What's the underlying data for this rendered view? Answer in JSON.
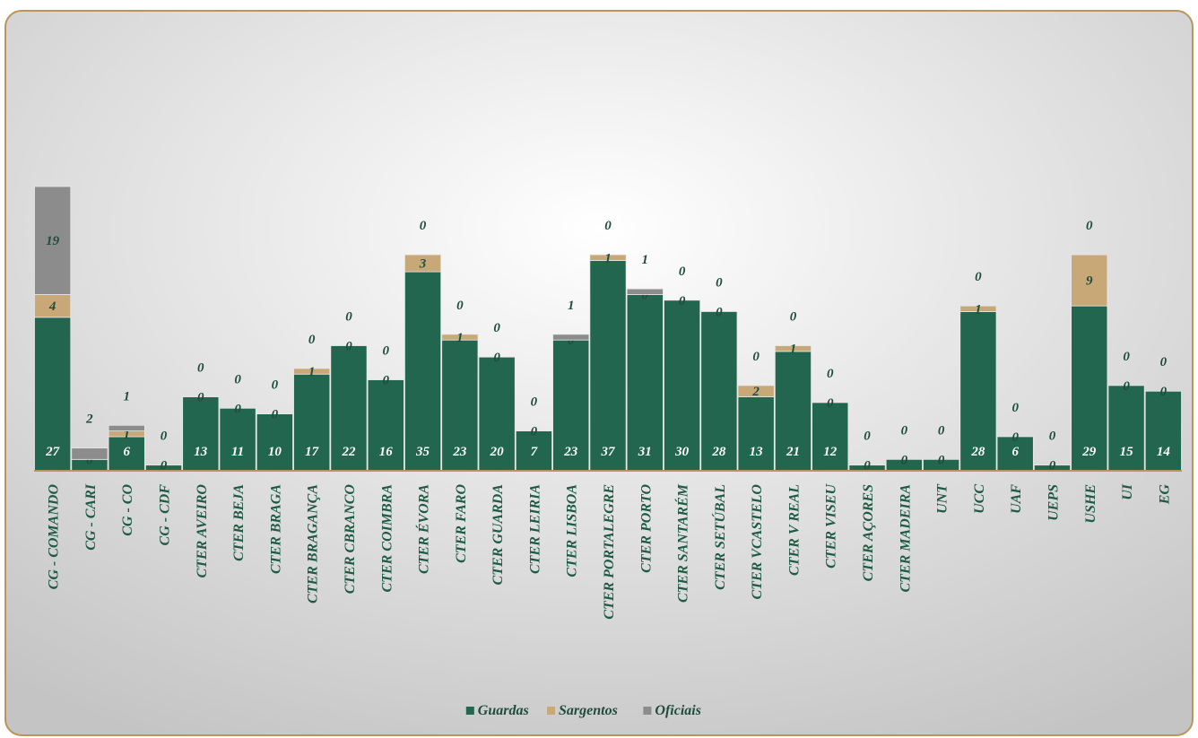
{
  "chart_data": {
    "type": "bar",
    "stacked": true,
    "categories": [
      "CG - COMANDO",
      "CG - CARI",
      "CG - CO",
      "CG - CDF",
      "CTER AVEIRO",
      "CTER BEJA",
      "CTER BRAGA",
      "CTER BRAGANÇA",
      "CTER CBRANCO",
      "CTER COIMBRA",
      "CTER ÉVORA",
      "CTER FARO",
      "CTER GUARDA",
      "CTER LEIRIA",
      "CTER LISBOA",
      "CTER PORTALEGRE",
      "CTER PORTO",
      "CTER SANTARÉM",
      "CTER SETÚBAL",
      "CTER VCASTELO",
      "CTER V REAL",
      "CTER VISEU",
      "CTER AÇORES",
      "CTER MADEIRA",
      "UNT",
      "UCC",
      "UAF",
      "UEPS",
      "USHE",
      "UI",
      "EG"
    ],
    "series": [
      {
        "name": "Guardas",
        "color": "#236650",
        "values": [
          27,
          2,
          6,
          1,
          13,
          11,
          10,
          17,
          22,
          16,
          35,
          23,
          20,
          7,
          23,
          37,
          31,
          30,
          28,
          13,
          21,
          12,
          1,
          2,
          2,
          28,
          6,
          1,
          29,
          15,
          14
        ]
      },
      {
        "name": "Sargentos",
        "color": "#c9a878",
        "values": [
          4,
          0,
          1,
          0,
          0,
          0,
          0,
          1,
          0,
          0,
          3,
          1,
          0,
          0,
          0,
          1,
          0,
          0,
          0,
          2,
          1,
          0,
          0,
          0,
          0,
          1,
          0,
          0,
          9,
          0,
          0
        ]
      },
      {
        "name": "Oficiais",
        "color": "#8c8c8c",
        "values": [
          19,
          2,
          1,
          0,
          0,
          0,
          0,
          0,
          0,
          0,
          0,
          0,
          0,
          0,
          1,
          0,
          1,
          0,
          0,
          0,
          0,
          0,
          0,
          0,
          0,
          0,
          0,
          0,
          0,
          0,
          0
        ]
      }
    ],
    "ylim": [
      0,
      50
    ],
    "legend": "bottom"
  }
}
